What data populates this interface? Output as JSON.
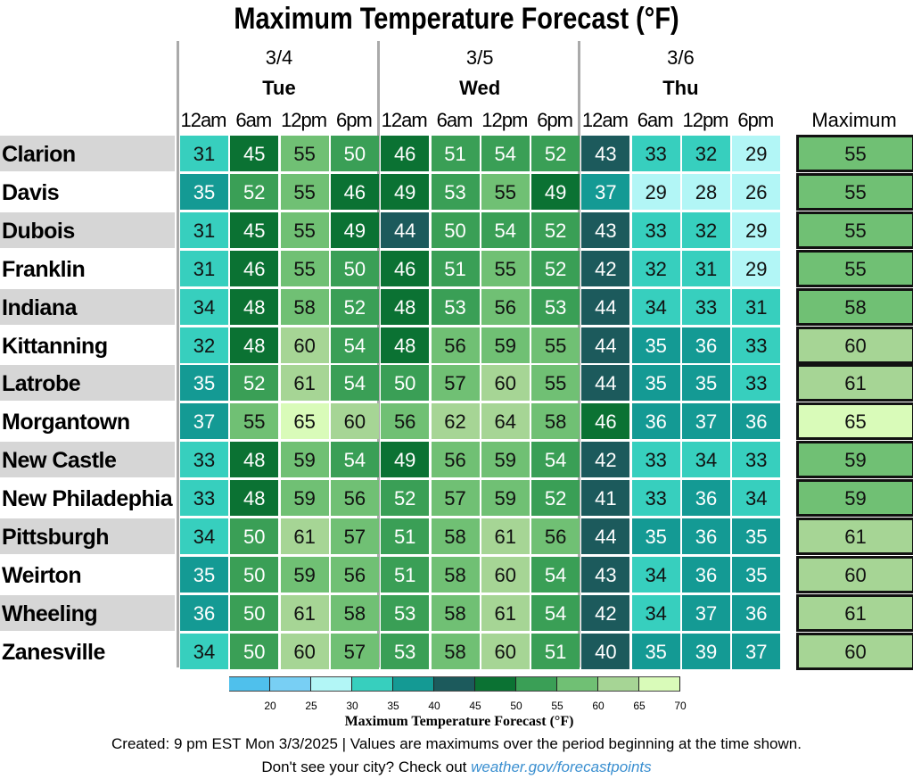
{
  "chart_data": {
    "type": "heatmap",
    "title": "Maximum Temperature Forecast (°F)",
    "days": [
      {
        "date": "3/4",
        "dow": "Tue"
      },
      {
        "date": "3/5",
        "dow": "Wed"
      },
      {
        "date": "3/6",
        "dow": "Thu"
      }
    ],
    "times": [
      "12am",
      "6am",
      "12pm",
      "6pm",
      "12am",
      "6am",
      "12pm",
      "6pm",
      "12am",
      "6am",
      "12pm",
      "6pm"
    ],
    "max_header": "Maximum",
    "rows": [
      {
        "city": "Clarion",
        "values": [
          31,
          45,
          55,
          50,
          46,
          51,
          54,
          52,
          43,
          33,
          32,
          29
        ],
        "max": 55
      },
      {
        "city": "Davis",
        "values": [
          35,
          52,
          55,
          46,
          49,
          53,
          55,
          49,
          37,
          29,
          28,
          26
        ],
        "max": 55
      },
      {
        "city": "Dubois",
        "values": [
          31,
          45,
          55,
          49,
          44,
          50,
          54,
          52,
          43,
          33,
          32,
          29
        ],
        "max": 55
      },
      {
        "city": "Franklin",
        "values": [
          31,
          46,
          55,
          50,
          46,
          51,
          55,
          52,
          42,
          32,
          31,
          29
        ],
        "max": 55
      },
      {
        "city": "Indiana",
        "values": [
          34,
          48,
          58,
          52,
          48,
          53,
          56,
          53,
          44,
          34,
          33,
          31
        ],
        "max": 58
      },
      {
        "city": "Kittanning",
        "values": [
          32,
          48,
          60,
          54,
          48,
          56,
          59,
          55,
          44,
          35,
          36,
          33
        ],
        "max": 60
      },
      {
        "city": "Latrobe",
        "values": [
          35,
          52,
          61,
          54,
          50,
          57,
          60,
          55,
          44,
          35,
          35,
          33
        ],
        "max": 61
      },
      {
        "city": "Morgantown",
        "values": [
          37,
          55,
          65,
          60,
          56,
          62,
          64,
          58,
          46,
          36,
          37,
          36
        ],
        "max": 65
      },
      {
        "city": "New Castle",
        "values": [
          33,
          48,
          59,
          54,
          49,
          56,
          59,
          54,
          42,
          33,
          34,
          33
        ],
        "max": 59
      },
      {
        "city": "New Philadephia",
        "values": [
          33,
          48,
          59,
          56,
          52,
          57,
          59,
          52,
          41,
          33,
          36,
          34
        ],
        "max": 59
      },
      {
        "city": "Pittsburgh",
        "values": [
          34,
          50,
          61,
          57,
          51,
          58,
          61,
          56,
          44,
          35,
          36,
          35
        ],
        "max": 61
      },
      {
        "city": "Weirton",
        "values": [
          35,
          50,
          59,
          56,
          51,
          58,
          60,
          54,
          43,
          34,
          36,
          35
        ],
        "max": 60
      },
      {
        "city": "Wheeling",
        "values": [
          36,
          50,
          61,
          58,
          53,
          58,
          61,
          54,
          42,
          34,
          37,
          36
        ],
        "max": 61
      },
      {
        "city": "Zanesville",
        "values": [
          34,
          50,
          60,
          57,
          53,
          58,
          60,
          51,
          40,
          35,
          39,
          37
        ],
        "max": 60
      }
    ],
    "colorbar": {
      "title": "Maximum Temperature Forecast (°F)",
      "bins": [
        15,
        20,
        25,
        30,
        35,
        40,
        45,
        50,
        55,
        60,
        65,
        70
      ],
      "ticks": [
        "20",
        "25",
        "30",
        "35",
        "40",
        "45",
        "50",
        "55",
        "60",
        "65",
        "70"
      ],
      "colors": [
        "#4fc0ec",
        "#78cff4",
        "#b2f6f6",
        "#37cfbe",
        "#149a94",
        "#1c5a5c",
        "#0b7233",
        "#3a9f56",
        "#70c074",
        "#a6d595",
        "#d9fbb9"
      ]
    }
  },
  "footer": {
    "created": "Created: 9 pm EST Mon 3/3/2025  |  Values are maximums over the period beginning at the time shown.",
    "prompt": "Don't see your city? Check out ",
    "link": "weather.gov/forecastpoints"
  }
}
